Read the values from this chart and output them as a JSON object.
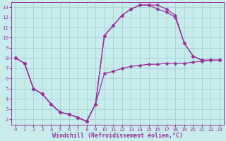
{
  "xlabel": "Windchill (Refroidissement éolien,°C)",
  "bg_color": "#c8ecec",
  "grid_color": "#aad4d4",
  "line_color": "#993399",
  "xlim": [
    -0.5,
    23.5
  ],
  "ylim": [
    1.5,
    13.5
  ],
  "xticks": [
    0,
    1,
    2,
    3,
    4,
    5,
    6,
    7,
    8,
    9,
    10,
    11,
    12,
    13,
    14,
    15,
    16,
    17,
    18,
    19,
    20,
    21,
    22,
    23
  ],
  "yticks": [
    2,
    3,
    4,
    5,
    6,
    7,
    8,
    9,
    10,
    11,
    12,
    13
  ],
  "line1_x": [
    0,
    1,
    2,
    3,
    4,
    5,
    6,
    7,
    8,
    9,
    10,
    11,
    12,
    13,
    14,
    15,
    16,
    17,
    18,
    19,
    20,
    21,
    22,
    23
  ],
  "line1_y": [
    8.0,
    7.5,
    5.0,
    4.5,
    3.5,
    2.7,
    2.5,
    2.2,
    1.8,
    3.5,
    6.5,
    6.7,
    7.0,
    7.2,
    7.3,
    7.4,
    7.4,
    7.5,
    7.5,
    7.5,
    7.6,
    7.7,
    7.8,
    7.8
  ],
  "line2_x": [
    0,
    1,
    2,
    3,
    4,
    5,
    6,
    7,
    8,
    9,
    10,
    11,
    12,
    13,
    14,
    15,
    16,
    17,
    18,
    19,
    20,
    21,
    22,
    23
  ],
  "line2_y": [
    8.0,
    7.5,
    5.0,
    4.5,
    3.5,
    2.7,
    2.5,
    2.2,
    1.8,
    3.5,
    10.2,
    11.2,
    12.2,
    12.8,
    13.2,
    13.2,
    13.2,
    12.8,
    12.2,
    9.5,
    8.2,
    7.8,
    7.8,
    7.8
  ],
  "line3_x": [
    0,
    1,
    2,
    3,
    4,
    5,
    6,
    7,
    8,
    9,
    10,
    11,
    12,
    13,
    14,
    15,
    16,
    17,
    18,
    19,
    20,
    21,
    22,
    23
  ],
  "line3_y": [
    8.0,
    7.5,
    5.0,
    4.5,
    3.5,
    2.7,
    2.5,
    2.2,
    1.8,
    3.5,
    10.2,
    11.2,
    12.2,
    12.8,
    13.2,
    13.2,
    12.8,
    12.5,
    12.0,
    9.5,
    8.2,
    7.8,
    7.8,
    7.8
  ],
  "marker": "D",
  "markersize": 2.5,
  "linewidth": 0.9,
  "tick_fontsize": 5.0,
  "xlabel_fontsize": 6.0
}
